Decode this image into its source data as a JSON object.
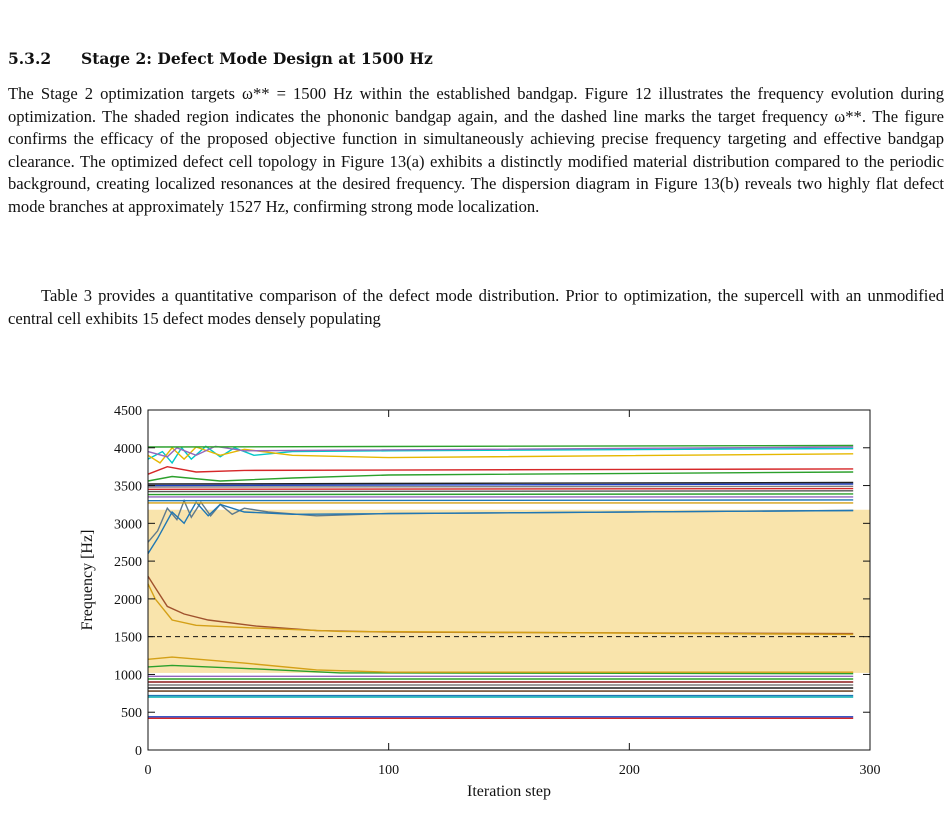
{
  "section": {
    "number": "5.3.2",
    "title": "Stage 2: Defect Mode Design at 1500 Hz"
  },
  "paragraphs": [
    "The Stage 2 optimization targets ω** = 1500 Hz within the established bandgap. Figure 12 illustrates the frequency evolution during optimization. The shaded region indicates the phononic bandgap again, and the dashed line marks the target frequency ω**. The figure confirms the efficacy of the proposed objective function in simultaneously achieving precise frequency targeting and effective bandgap clearance. The optimized defect cell topology in Figure 13(a) exhibits a distinctly modified material distribution compared to the periodic background, creating localized resonances at the desired frequency. The dispersion diagram in Figure 13(b) reveals two highly flat defect mode branches at approximately 1527 Hz, confirming strong mode localization.",
    "Table 3 provides a quantitative comparison of the defect mode distribution. Prior to optimization, the supercell with an unmodified central cell exhibits 15 defect modes densely populating"
  ],
  "chart_data": {
    "type": "line",
    "title": "",
    "xlabel": "Iteration step",
    "ylabel": "Frequency [Hz]",
    "xlim": [
      0,
      300
    ],
    "ylim": [
      0,
      4500
    ],
    "xticks": [
      0,
      100,
      200,
      300
    ],
    "yticks": [
      0,
      500,
      1000,
      1500,
      2000,
      2500,
      3000,
      3500,
      4000,
      4500
    ],
    "grid": false,
    "legend": "none",
    "bandgap": {
      "from": 1020,
      "to": 3180,
      "color": "#f9e4ac"
    },
    "target_line": {
      "y": 1500,
      "style": "dashed"
    },
    "last_iteration": 293,
    "series": [
      {
        "values": [
          [
            0,
            420
          ],
          [
            293,
            420
          ]
        ],
        "color": "#d62728"
      },
      {
        "values": [
          [
            0,
            440
          ],
          [
            293,
            440
          ]
        ],
        "color": "#1f3fbf"
      },
      {
        "values": [
          [
            0,
            700
          ],
          [
            293,
            700
          ]
        ],
        "color": "#00b0b0"
      },
      {
        "values": [
          [
            0,
            720
          ],
          [
            293,
            720
          ]
        ],
        "color": "#1f77b4"
      },
      {
        "values": [
          [
            0,
            780
          ],
          [
            293,
            780
          ]
        ],
        "color": "#5a2d0c"
      },
      {
        "values": [
          [
            0,
            820
          ],
          [
            293,
            820
          ]
        ],
        "color": "#222222"
      },
      {
        "values": [
          [
            0,
            860
          ],
          [
            293,
            860
          ]
        ],
        "color": "#7f7f7f"
      },
      {
        "values": [
          [
            0,
            900
          ],
          [
            293,
            900
          ]
        ],
        "color": "#8b1a1a"
      },
      {
        "values": [
          [
            0,
            940
          ],
          [
            293,
            940
          ]
        ],
        "color": "#2ca02c"
      },
      {
        "values": [
          [
            0,
            975
          ],
          [
            293,
            975
          ]
        ],
        "color": "#9467bd"
      },
      {
        "values": [
          [
            0,
            1100
          ],
          [
            10,
            1120
          ],
          [
            40,
            1080
          ],
          [
            80,
            1020
          ],
          [
            293,
            1010
          ]
        ],
        "color": "#2ca02c"
      },
      {
        "values": [
          [
            0,
            1200
          ],
          [
            10,
            1230
          ],
          [
            40,
            1150
          ],
          [
            70,
            1060
          ],
          [
            100,
            1030
          ],
          [
            293,
            1030
          ]
        ],
        "color": "#d4a017"
      },
      {
        "values": [
          [
            0,
            2300
          ],
          [
            3,
            2150
          ],
          [
            8,
            1900
          ],
          [
            15,
            1800
          ],
          [
            25,
            1720
          ],
          [
            45,
            1640
          ],
          [
            70,
            1580
          ],
          [
            100,
            1560
          ],
          [
            293,
            1540
          ]
        ],
        "color": "#a0522d"
      },
      {
        "values": [
          [
            0,
            2200
          ],
          [
            3,
            2000
          ],
          [
            10,
            1720
          ],
          [
            20,
            1650
          ],
          [
            40,
            1620
          ],
          [
            80,
            1570
          ],
          [
            293,
            1530
          ]
        ],
        "color": "#d4a017"
      },
      {
        "values": [
          [
            0,
            2750
          ],
          [
            4,
            2900
          ],
          [
            8,
            3200
          ],
          [
            12,
            3050
          ],
          [
            15,
            3300
          ],
          [
            18,
            3080
          ],
          [
            22,
            3280
          ],
          [
            26,
            3100
          ],
          [
            30,
            3250
          ],
          [
            35,
            3120
          ],
          [
            40,
            3200
          ],
          [
            50,
            3150
          ],
          [
            70,
            3100
          ],
          [
            100,
            3130
          ],
          [
            150,
            3140
          ],
          [
            200,
            3150
          ],
          [
            293,
            3170
          ]
        ],
        "color": "#5f7a8c"
      },
      {
        "values": [
          [
            0,
            2600
          ],
          [
            4,
            2800
          ],
          [
            10,
            3150
          ],
          [
            15,
            3000
          ],
          [
            20,
            3280
          ],
          [
            25,
            3100
          ],
          [
            30,
            3250
          ],
          [
            40,
            3150
          ],
          [
            60,
            3120
          ],
          [
            293,
            3170
          ]
        ],
        "color": "#1f77b4"
      },
      {
        "values": [
          [
            0,
            3270
          ],
          [
            293,
            3270
          ]
        ],
        "color": "#d4a017"
      },
      {
        "values": [
          [
            0,
            3300
          ],
          [
            293,
            3310
          ]
        ],
        "color": "#1f77b4"
      },
      {
        "values": [
          [
            0,
            3350
          ],
          [
            293,
            3350
          ]
        ],
        "color": "#9467bd"
      },
      {
        "values": [
          [
            0,
            3380
          ],
          [
            293,
            3390
          ]
        ],
        "color": "#2ca02c"
      },
      {
        "values": [
          [
            0,
            3420
          ],
          [
            293,
            3430
          ]
        ],
        "color": "#555555"
      },
      {
        "values": [
          [
            0,
            3450
          ],
          [
            293,
            3460
          ]
        ],
        "color": "#d62728"
      },
      {
        "values": [
          [
            0,
            3480
          ],
          [
            293,
            3490
          ]
        ],
        "color": "#7f7f7f"
      },
      {
        "values": [
          [
            0,
            3500
          ],
          [
            293,
            3520
          ]
        ],
        "color": "#1f3fbf"
      },
      {
        "values": [
          [
            0,
            3520
          ],
          [
            293,
            3540
          ]
        ],
        "color": "#222222"
      },
      {
        "values": [
          [
            0,
            3560
          ],
          [
            10,
            3620
          ],
          [
            30,
            3560
          ],
          [
            60,
            3600
          ],
          [
            100,
            3640
          ],
          [
            293,
            3680
          ]
        ],
        "color": "#2ca02c"
      },
      {
        "values": [
          [
            0,
            3650
          ],
          [
            8,
            3750
          ],
          [
            20,
            3680
          ],
          [
            40,
            3700
          ],
          [
            293,
            3720
          ]
        ],
        "color": "#d62728"
      },
      {
        "values": [
          [
            0,
            3850
          ],
          [
            6,
            3950
          ],
          [
            10,
            3800
          ],
          [
            14,
            4000
          ],
          [
            18,
            3850
          ],
          [
            24,
            4020
          ],
          [
            30,
            3880
          ],
          [
            36,
            4000
          ],
          [
            44,
            3900
          ],
          [
            60,
            3950
          ],
          [
            100,
            3960
          ],
          [
            293,
            3990
          ]
        ],
        "color": "#00c8c8"
      },
      {
        "values": [
          [
            0,
            3900
          ],
          [
            5,
            3800
          ],
          [
            10,
            4000
          ],
          [
            15,
            3850
          ],
          [
            20,
            4010
          ],
          [
            30,
            3900
          ],
          [
            40,
            3980
          ],
          [
            60,
            3900
          ],
          [
            100,
            3870
          ],
          [
            293,
            3920
          ]
        ],
        "color": "#e6b800"
      },
      {
        "values": [
          [
            0,
            3950
          ],
          [
            8,
            3880
          ],
          [
            12,
            4000
          ],
          [
            20,
            3900
          ],
          [
            28,
            4020
          ],
          [
            40,
            3960
          ],
          [
            293,
            4010
          ]
        ],
        "color": "#9467bd"
      },
      {
        "values": [
          [
            0,
            4010
          ],
          [
            293,
            4030
          ]
        ],
        "color": "#2ca02c"
      }
    ]
  }
}
